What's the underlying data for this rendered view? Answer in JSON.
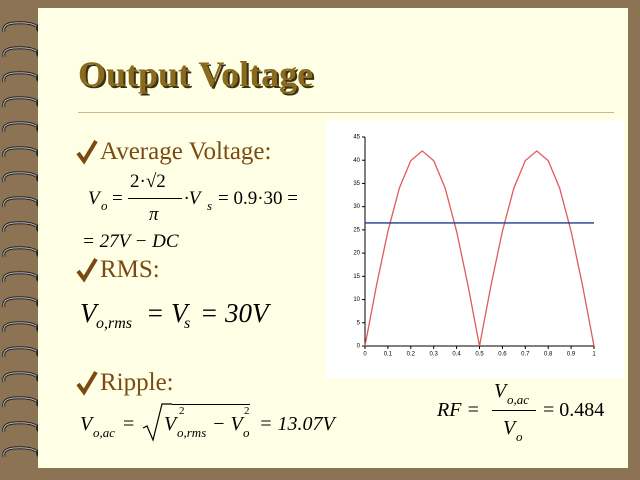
{
  "title": "Output Voltage",
  "bullets": [
    "Average Voltage:",
    "RMS:",
    "Ripple:"
  ],
  "average_formula": {
    "lhs": "V",
    "lhs_sub": "o",
    "eq": "=",
    "numerator": "2·√2",
    "denominator": "π",
    "factor": "·V",
    "factor_sub": "s",
    "rest": "= 0.9·30 =",
    "line2": "= 27V − DC"
  },
  "rms_formula": {
    "lhs": "V",
    "lhs_sub": "o,rms",
    "mid": "= V",
    "mid_sub": "s",
    "rhs": "= 30V"
  },
  "ripple_formula": {
    "lhs": "V",
    "lhs_sub": "o,ac",
    "eq": "=",
    "a": "V",
    "a_sup": "2",
    "a_sub": "o,rms",
    "b": "− V",
    "b_sup": "2",
    "b_sub": "o",
    "rhs": "= 13.07V"
  },
  "rf_formula": {
    "lhs": "RF =",
    "numerator": "V",
    "numerator_sub": "o,ac",
    "denominator": "V",
    "denominator_sub": "o",
    "rhs": "= 0.484"
  },
  "chart_data": {
    "type": "line",
    "x": [
      0,
      0.05,
      0.1,
      0.15,
      0.2,
      0.25,
      0.3,
      0.35,
      0.4,
      0.45,
      0.5,
      0.55,
      0.6,
      0.65,
      0.7,
      0.75,
      0.8,
      0.85,
      0.9,
      0.95,
      1
    ],
    "series": [
      {
        "color": "#e05a5a",
        "values": [
          0,
          13,
          24.7,
          34,
          39.9,
          42,
          39.9,
          34,
          24.7,
          13,
          0,
          13,
          24.7,
          34,
          39.9,
          42,
          39.9,
          34,
          24.7,
          13,
          0
        ]
      },
      {
        "color": "#1f3a8f",
        "values": [
          26.5,
          26.5,
          26.5,
          26.5,
          26.5,
          26.5,
          26.5,
          26.5,
          26.5,
          26.5,
          26.5,
          26.5,
          26.5,
          26.5,
          26.5,
          26.5,
          26.5,
          26.5,
          26.5,
          26.5,
          26.5
        ]
      }
    ],
    "xlim": [
      0,
      1
    ],
    "ylim": [
      0,
      45
    ],
    "xticks": [
      0,
      0.1,
      0.2,
      0.3,
      0.4,
      0.5,
      0.6,
      0.7,
      0.8,
      0.9,
      1
    ],
    "yticks": [
      0,
      5,
      10,
      15,
      20,
      25,
      30,
      35,
      40,
      45
    ]
  }
}
